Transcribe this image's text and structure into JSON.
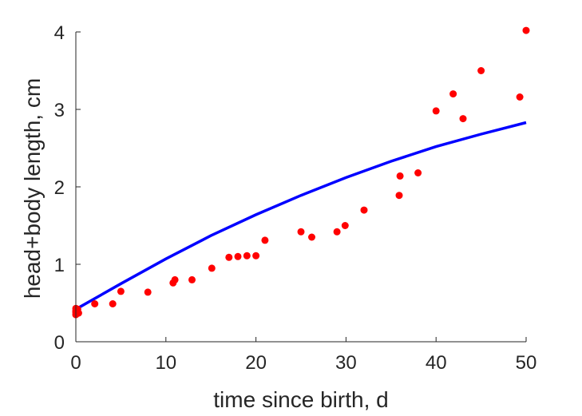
{
  "chart_data": {
    "type": "scatter",
    "xlabel": "time since birth, d",
    "ylabel": "head+body length, cm",
    "xlim": [
      0,
      50
    ],
    "ylim": [
      0,
      4
    ],
    "xticks": [
      0,
      10,
      20,
      30,
      40,
      50
    ],
    "yticks": [
      0,
      1,
      2,
      3,
      4
    ],
    "grid": false,
    "box": false,
    "series": [
      {
        "kind": "scatter",
        "color": "#ff0000",
        "points": [
          [
            0,
            0.35
          ],
          [
            0,
            0.38
          ],
          [
            0,
            0.4
          ],
          [
            0,
            0.43
          ],
          [
            0.2,
            0.42
          ],
          [
            0.3,
            0.37
          ],
          [
            2.1,
            0.49
          ],
          [
            4.1,
            0.49
          ],
          [
            5,
            0.65
          ],
          [
            8,
            0.64
          ],
          [
            10.8,
            0.76
          ],
          [
            11,
            0.8
          ],
          [
            12.9,
            0.8
          ],
          [
            15.1,
            0.95
          ],
          [
            17,
            1.09
          ],
          [
            18,
            1.1
          ],
          [
            19,
            1.11
          ],
          [
            20,
            1.11
          ],
          [
            21,
            1.31
          ],
          [
            25,
            1.42
          ],
          [
            26.2,
            1.35
          ],
          [
            29,
            1.42
          ],
          [
            29.9,
            1.5
          ],
          [
            32,
            1.7
          ],
          [
            35.9,
            1.89
          ],
          [
            36,
            2.14
          ],
          [
            38,
            2.18
          ],
          [
            40,
            2.98
          ],
          [
            41.9,
            3.2
          ],
          [
            43,
            2.88
          ],
          [
            45,
            3.5
          ],
          [
            49.3,
            3.16
          ],
          [
            50,
            4.02
          ]
        ]
      },
      {
        "kind": "line",
        "color": "#0000ff",
        "x": [
          0,
          5,
          10,
          15,
          20,
          25,
          30,
          35,
          40,
          45,
          50
        ],
        "y": [
          0.42,
          0.75,
          1.07,
          1.37,
          1.64,
          1.89,
          2.12,
          2.33,
          2.52,
          2.68,
          2.83
        ]
      }
    ]
  }
}
